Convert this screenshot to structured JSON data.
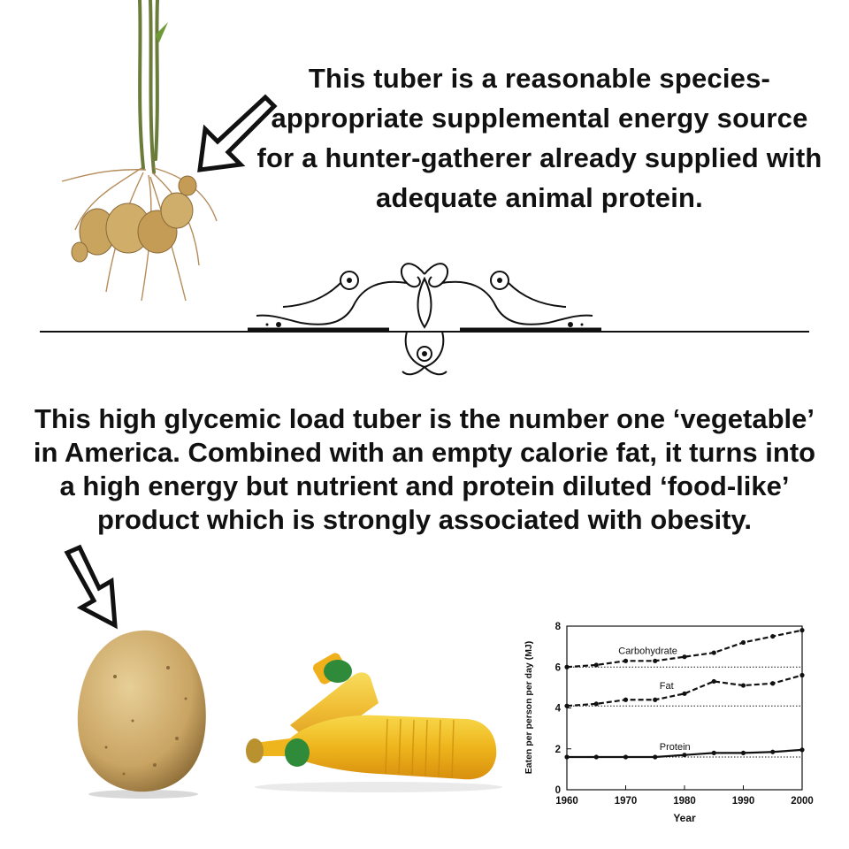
{
  "captions": {
    "top": "This tuber is a reasonable species-appropriate supplemental energy source for a hunter-gatherer already supplied with adequate animal protein.",
    "middle": "This high glycemic load tuber is the number one ‘vegetable’ in America. Combined with an empty calorie fat, it turns into a high energy but nutrient and protein diluted ‘food-like’ product which is strongly associated with obesity."
  },
  "icons": {
    "top_arrow": "outline-arrow-down-left-icon",
    "bottom_arrow": "outline-arrow-down-right-icon",
    "divider": "ornamental-divider-icon"
  },
  "images": {
    "wild_tuber": "wild-tuber-plant-with-roots",
    "potato": "russet-potato",
    "oil": "vegetable-oil-bottles"
  },
  "chart_data": {
    "type": "line",
    "xlabel": "Year",
    "ylabel": "Eaten per person per day (MJ)",
    "x_ticks": [
      1960,
      1970,
      1980,
      1990,
      2000
    ],
    "y_ticks": [
      0,
      2,
      4,
      6,
      8
    ],
    "xlim": [
      1960,
      2000
    ],
    "ylim": [
      0,
      8
    ],
    "grid": false,
    "series": [
      {
        "name": "Carbohydrate",
        "style": "dashed",
        "x": [
          1960,
          1965,
          1970,
          1975,
          1980,
          1985,
          1990,
          1995,
          2000
        ],
        "y": [
          6.0,
          6.1,
          6.3,
          6.3,
          6.5,
          6.7,
          7.2,
          7.5,
          7.8
        ],
        "baseline": 6.0
      },
      {
        "name": "Fat",
        "style": "dashed",
        "x": [
          1960,
          1965,
          1970,
          1975,
          1980,
          1985,
          1990,
          1995,
          2000
        ],
        "y": [
          4.1,
          4.2,
          4.4,
          4.4,
          4.7,
          5.3,
          5.1,
          5.2,
          5.6
        ],
        "baseline": 4.1
      },
      {
        "name": "Protein",
        "style": "solid",
        "x": [
          1960,
          1965,
          1970,
          1975,
          1980,
          1985,
          1990,
          1995,
          2000
        ],
        "y": [
          1.6,
          1.6,
          1.6,
          1.6,
          1.7,
          1.8,
          1.8,
          1.85,
          1.95
        ],
        "baseline": 1.6
      }
    ]
  }
}
